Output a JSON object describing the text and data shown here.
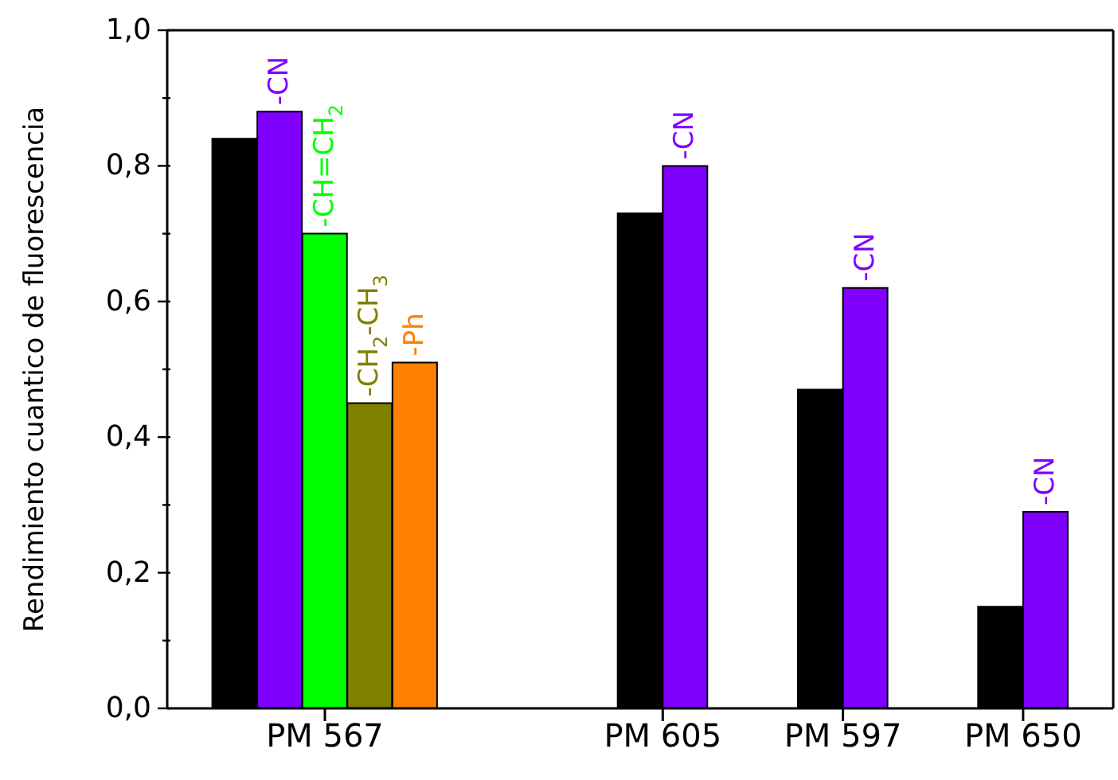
{
  "chart_data": {
    "type": "bar",
    "ylabel": "Rendimiento cuantico de fluorescencia",
    "categories": [
      "PM 567",
      "PM 605",
      "PM 597",
      "PM 650"
    ],
    "series": [
      {
        "color": "#000000",
        "values": [
          0.84,
          0.73,
          0.47,
          0.15
        ]
      },
      {
        "name": "-CN",
        "color": "#8000ff",
        "values": [
          0.88,
          0.8,
          0.62,
          0.29
        ]
      },
      {
        "name": "-CH=CH$_{2}$",
        "color": "#00ff00",
        "values": [
          0.7,
          null,
          null,
          null
        ]
      },
      {
        "name": "-CH$_{2}$-CH$_{3}$",
        "color": "#808000",
        "values": [
          0.45,
          null,
          null,
          null
        ]
      },
      {
        "name": "-Ph",
        "color": "#ff8000",
        "values": [
          0.51,
          null,
          null,
          null
        ]
      }
    ],
    "ylim": [
      0,
      1.0
    ],
    "yticks": [
      {
        "value": 0,
        "label": "0,0"
      },
      {
        "value": 0.1,
        "label": null
      },
      {
        "value": 0.2,
        "label": "0,2"
      },
      {
        "value": 0.3,
        "label": null
      },
      {
        "value": 0.4,
        "label": "0,4"
      },
      {
        "value": 0.5,
        "label": null
      },
      {
        "value": 0.6,
        "label": "0,6"
      },
      {
        "value": 0.7,
        "label": null
      },
      {
        "value": 0.8,
        "label": "0,8"
      },
      {
        "value": 0.9,
        "label": null
      },
      {
        "value": 1.0,
        "label": "1,0"
      }
    ],
    "grid": false,
    "legend": false
  }
}
